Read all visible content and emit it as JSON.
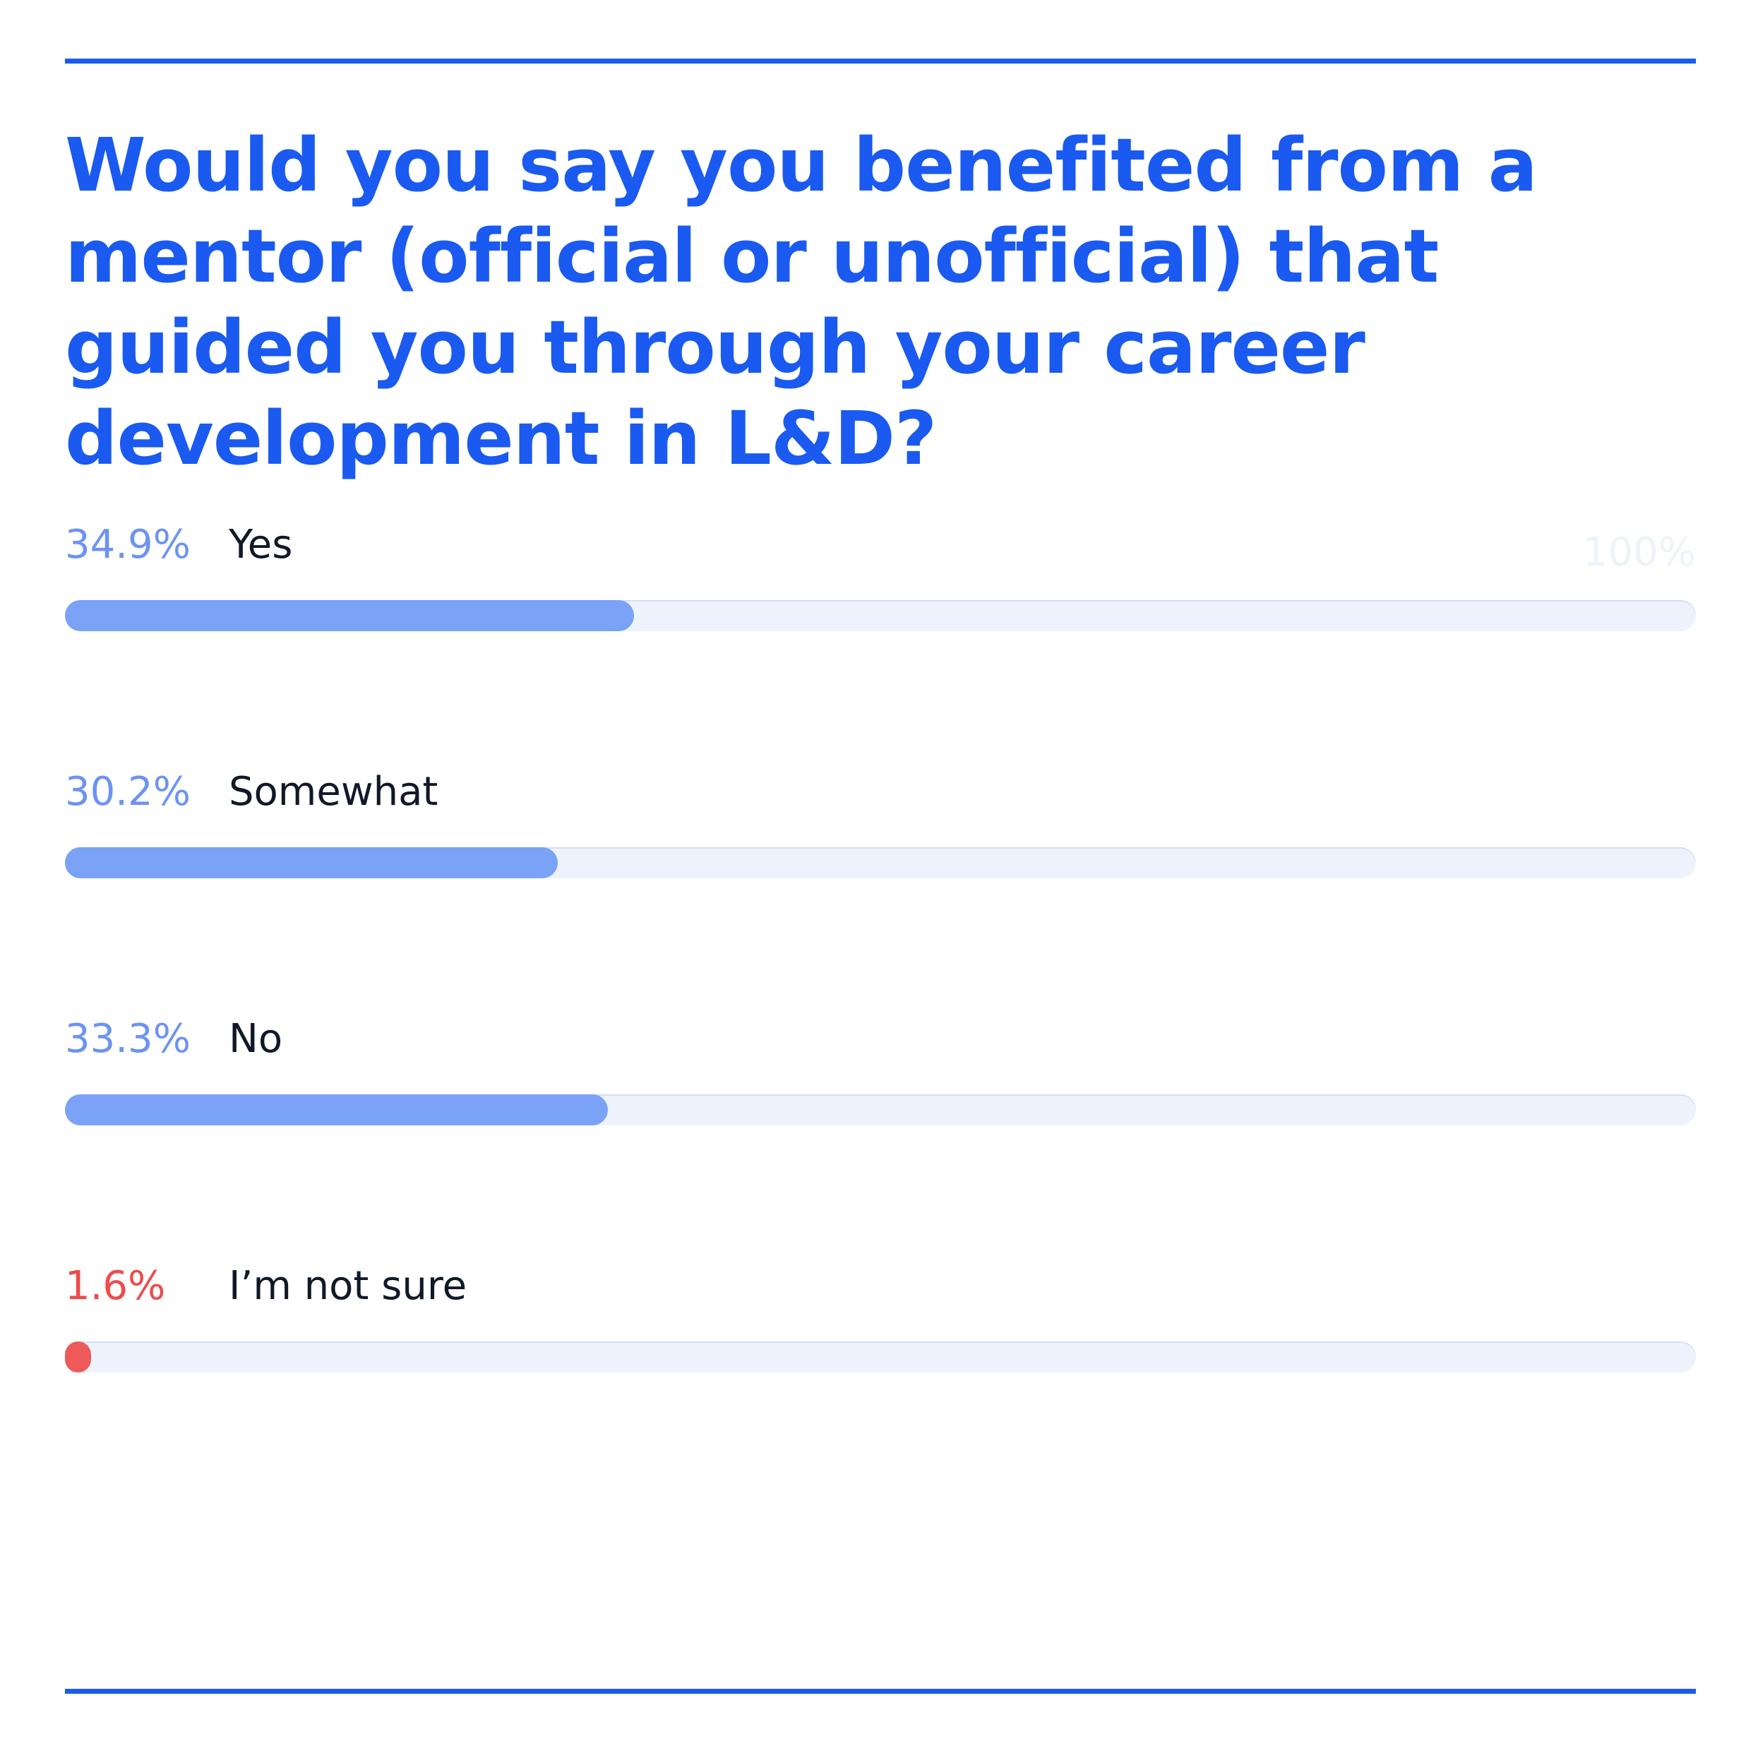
{
  "chart_data": {
    "type": "bar",
    "orientation": "horizontal",
    "title": "Would you say you benefited from a mentor (official or unofficial) that guided you through your career development in L&D?",
    "scale_max_label": "100%",
    "xlim": [
      0,
      100
    ],
    "bars": [
      {
        "label": "Yes",
        "value": 34.9,
        "value_label": "34.9%",
        "color": "#7aa2f7",
        "text_color": "#6d93f2"
      },
      {
        "label": "Somewhat",
        "value": 30.2,
        "value_label": "30.2%",
        "color": "#7aa2f7",
        "text_color": "#6d93f2"
      },
      {
        "label": "No",
        "value": 33.3,
        "value_label": "33.3%",
        "color": "#7aa2f7",
        "text_color": "#6d93f2"
      },
      {
        "label": "I’m not sure",
        "value": 1.6,
        "value_label": "1.6%",
        "color": "#ee5a5a",
        "text_color": "#ee4b4b"
      }
    ]
  },
  "colors": {
    "accent": "#1a5af0",
    "track": "#eef2fc"
  }
}
